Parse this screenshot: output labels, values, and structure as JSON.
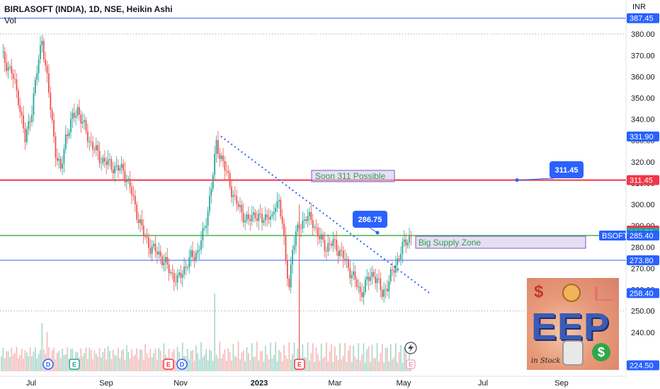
{
  "header": {
    "title": "BIRLASOFT (INDIA), 1D, NSE, Heikin Ashi",
    "volume_label": "Vol",
    "currency": "INR"
  },
  "colors": {
    "up": "#26a69a",
    "down": "#ef5350",
    "vol_up": "#a5d6c8",
    "vol_down": "#f5b7b5",
    "blue_line": "#2962ff",
    "red_line": "#f23645",
    "green_line": "#4caf50",
    "trend_line": "#2962ff",
    "grid": "#9598a1"
  },
  "chart_data": {
    "type": "candlestick",
    "title": "BIRLASOFT (INDIA), 1D, NSE, Heikin Ashi",
    "y_axis": {
      "min": 220,
      "max": 392,
      "ticks": [
        240,
        250,
        260,
        270,
        280,
        290,
        300,
        310,
        320,
        330,
        340,
        350,
        360,
        370,
        380
      ],
      "tick_labels": [
        "240.00",
        "250.00",
        "260.00",
        "270.00",
        "280.00",
        "290.00",
        "300.00",
        "310.00",
        "320.00",
        "330.00",
        "340.00",
        "350.00",
        "360.00",
        "370.00",
        "380.00"
      ]
    },
    "x_axis": {
      "labels": [
        {
          "text": "Jul",
          "bold": false
        },
        {
          "text": "Sep",
          "bold": false
        },
        {
          "text": "Nov",
          "bold": false
        },
        {
          "text": "2023",
          "bold": true
        },
        {
          "text": "Mar",
          "bold": false
        },
        {
          "text": "May",
          "bold": false
        },
        {
          "text": "Jul",
          "bold": false
        },
        {
          "text": "Sep",
          "bold": false
        }
      ]
    },
    "candle_waypoints": [
      [
        0,
        370
      ],
      [
        6,
        362
      ],
      [
        10,
        350
      ],
      [
        14,
        330
      ],
      [
        18,
        345
      ],
      [
        22,
        368
      ],
      [
        24,
        378
      ],
      [
        28,
        352
      ],
      [
        32,
        325
      ],
      [
        35,
        315
      ],
      [
        38,
        332
      ],
      [
        42,
        340
      ],
      [
        45,
        345
      ],
      [
        48,
        338
      ],
      [
        52,
        330
      ],
      [
        58,
        322
      ],
      [
        65,
        318
      ],
      [
        72,
        316
      ],
      [
        76,
        308
      ],
      [
        80,
        296
      ],
      [
        84,
        286
      ],
      [
        88,
        280
      ],
      [
        94,
        276
      ],
      [
        100,
        268
      ],
      [
        104,
        264
      ],
      [
        108,
        270
      ],
      [
        112,
        275
      ],
      [
        116,
        278
      ],
      [
        120,
        288
      ],
      [
        124,
        308
      ],
      [
        127,
        328
      ],
      [
        130,
        322
      ],
      [
        134,
        312
      ],
      [
        138,
        302
      ],
      [
        142,
        296
      ],
      [
        146,
        292
      ],
      [
        150,
        296
      ],
      [
        154,
        292
      ],
      [
        158,
        296
      ],
      [
        160,
        292
      ],
      [
        162,
        300
      ],
      [
        164,
        302
      ],
      [
        166,
        292
      ],
      [
        168,
        272
      ],
      [
        170,
        262
      ],
      [
        172,
        280
      ],
      [
        176,
        290
      ],
      [
        180,
        294
      ],
      [
        184,
        292
      ],
      [
        188,
        284
      ],
      [
        192,
        280
      ],
      [
        196,
        282
      ],
      [
        200,
        278
      ],
      [
        204,
        272
      ],
      [
        208,
        266
      ],
      [
        212,
        258
      ],
      [
        216,
        264
      ],
      [
        220,
        268
      ],
      [
        223,
        262
      ],
      [
        225,
        258
      ],
      [
        228,
        262
      ],
      [
        232,
        270
      ],
      [
        236,
        278
      ],
      [
        240,
        284
      ],
      [
        242,
        285.4
      ]
    ],
    "horizontal_lines": [
      {
        "value": 387.45,
        "label": "387.45",
        "color": "blue"
      },
      {
        "value": 311.45,
        "label": "311.45",
        "color": "red"
      },
      {
        "value": 285.4,
        "label": "285.40",
        "color": "green"
      },
      {
        "value": 273.8,
        "label": "273.80",
        "color": "blue"
      },
      {
        "value": 250,
        "label": "",
        "color": "dotted"
      },
      {
        "value": 380,
        "label": "",
        "color": "dotted"
      }
    ],
    "axis_badges": [
      {
        "value": 387.45,
        "label": "387.45",
        "color": "#2962ff"
      },
      {
        "value": 331.9,
        "label": "331.90",
        "color": "#2962ff"
      },
      {
        "value": 311.45,
        "label": "311.45",
        "color": "#f23645"
      },
      {
        "value": 287.75,
        "label": "287.75",
        "color": "#f23645"
      },
      {
        "value": 286.75,
        "label": "286.75",
        "color": "#26a69a"
      },
      {
        "value": 285.4,
        "label": "285.40",
        "color": "#2962ff"
      },
      {
        "value": 273.8,
        "label": "273.80",
        "color": "#2962ff"
      },
      {
        "value": 258.4,
        "label": "258.40",
        "color": "#2962ff"
      },
      {
        "value": 224.5,
        "label": "224.50",
        "color": "#2962ff"
      }
    ],
    "symbol_tag": "BSOFT",
    "annotations": {
      "soon_311": "Soon 311 Possible",
      "big_supply_zone": "Big Supply Zone",
      "callout_286": "286.75",
      "callout_311": "311.45"
    },
    "events": [
      {
        "letter": "D",
        "kind": "dividend"
      },
      {
        "letter": "E",
        "kind": "earnings"
      },
      {
        "letter": "E",
        "kind": "earnings"
      },
      {
        "letter": "D",
        "kind": "dividend"
      },
      {
        "letter": "E",
        "kind": "earnings"
      },
      {
        "letter": "E",
        "kind": "earnings"
      }
    ]
  }
}
